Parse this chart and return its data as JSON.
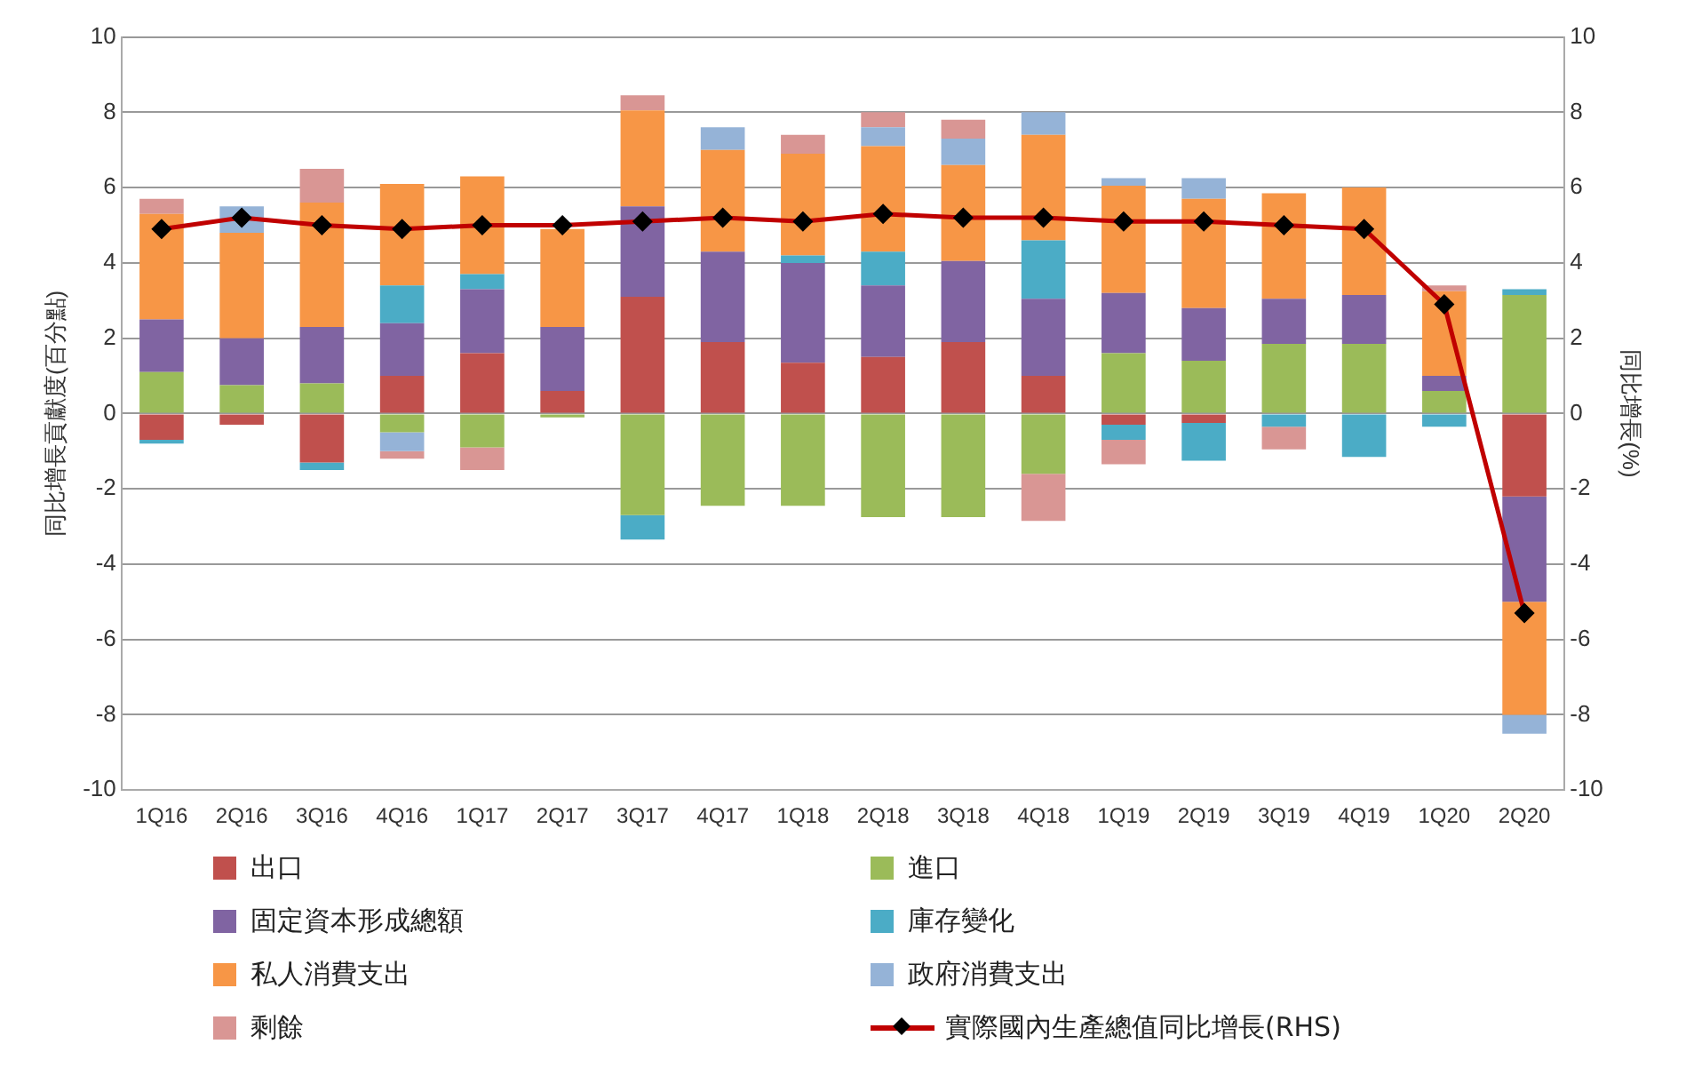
{
  "chart_data": {
    "type": "bar",
    "stacked": true,
    "ylabel": "同比增長貢獻度(百分點)",
    "y2label": "同比增長(%)",
    "categories": [
      "1Q16",
      "2Q16",
      "3Q16",
      "4Q16",
      "1Q17",
      "2Q17",
      "3Q17",
      "4Q17",
      "1Q18",
      "2Q18",
      "3Q18",
      "4Q18",
      "1Q19",
      "2Q19",
      "3Q19",
      "4Q19",
      "1Q20",
      "2Q20"
    ],
    "ylim": [
      -10,
      10
    ],
    "yticks": [
      -10,
      -8,
      -6,
      -4,
      -2,
      0,
      2,
      4,
      6,
      8,
      10
    ],
    "y2lim": [
      -10,
      10
    ],
    "y2ticks": [
      -10,
      -8,
      -6,
      -4,
      -2,
      0,
      2,
      4,
      6,
      8,
      10
    ],
    "grid": "y",
    "legend": "bottom",
    "series": [
      {
        "name": "出口",
        "color": "#c0504d",
        "values": [
          -0.7,
          -0.3,
          -1.3,
          1.0,
          1.6,
          0.6,
          3.1,
          1.9,
          1.35,
          1.5,
          1.9,
          1.0,
          -0.3,
          -0.25,
          0,
          0,
          0,
          -2.2
        ]
      },
      {
        "name": "進口",
        "color": "#9bbb59",
        "values": [
          1.1,
          0.75,
          0.8,
          -0.5,
          -0.9,
          -0.1,
          -2.7,
          -2.45,
          -2.45,
          -2.75,
          -2.75,
          -1.6,
          1.6,
          1.4,
          1.85,
          1.85,
          0.6,
          3.15
        ]
      },
      {
        "name": "固定資本形成總額",
        "color": "#8064a2",
        "values": [
          1.4,
          1.25,
          1.5,
          1.4,
          1.7,
          1.7,
          2.4,
          2.4,
          2.65,
          1.9,
          2.15,
          2.05,
          1.6,
          1.4,
          1.2,
          1.3,
          0.4,
          -2.8
        ]
      },
      {
        "name": "庫存變化",
        "color": "#4bacc6",
        "values": [
          -0.1,
          0,
          -0.2,
          1.0,
          0.4,
          0,
          -0.65,
          0,
          0.2,
          0.9,
          0,
          1.55,
          -0.4,
          -1.0,
          -0.35,
          -1.15,
          -0.35,
          0.15
        ]
      },
      {
        "name": "私人消費支出",
        "color": "#f79646",
        "values": [
          2.8,
          2.8,
          3.3,
          2.7,
          2.6,
          2.6,
          2.55,
          2.7,
          2.7,
          2.8,
          2.55,
          2.8,
          2.85,
          2.9,
          2.8,
          2.85,
          2.25,
          -3.0
        ]
      },
      {
        "name": "政府消費支出",
        "color": "#95b3d7",
        "values": [
          0,
          0.7,
          0,
          -0.5,
          0,
          0,
          0,
          0.6,
          0,
          0.5,
          0.7,
          0.6,
          0.2,
          0.55,
          0,
          0,
          0,
          -0.5
        ]
      },
      {
        "name": "剩餘",
        "color": "#d99694",
        "values": [
          0.4,
          0,
          0.9,
          -0.2,
          -0.6,
          0,
          0.4,
          0,
          0.5,
          0.4,
          0.5,
          -1.25,
          -0.65,
          0,
          -0.6,
          0,
          0.15,
          0
        ]
      },
      {
        "name": "實際國內生產總值同比增長(RHS)",
        "type": "line",
        "axis": "y2",
        "color": "#c00000",
        "marker": "diamond",
        "values": [
          4.9,
          5.2,
          5.0,
          4.9,
          5.0,
          5.0,
          5.1,
          5.2,
          5.1,
          5.3,
          5.2,
          5.2,
          5.1,
          5.1,
          5.0,
          4.9,
          2.9,
          -5.3
        ]
      }
    ]
  }
}
